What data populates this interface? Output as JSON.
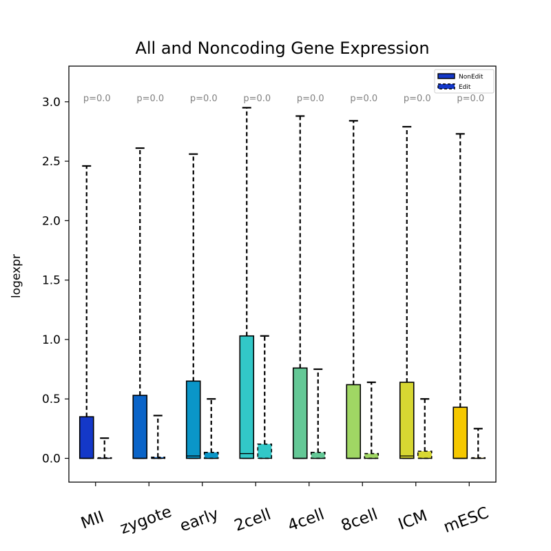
{
  "chart_data": {
    "type": "box",
    "title": "All and Noncoding Gene Expression",
    "xlabel": "",
    "ylabel": "logexpr",
    "ylim": [
      -0.2,
      3.3
    ],
    "yticks": [
      0.0,
      0.5,
      1.0,
      1.5,
      2.0,
      2.5,
      3.0
    ],
    "ytick_labels": [
      "0.0",
      "0.5",
      "1.0",
      "1.5",
      "2.0",
      "2.5",
      "3.0"
    ],
    "grid": false,
    "legend_position": "top-right",
    "categories": [
      "MII",
      "zygote",
      "early",
      "2cell",
      "4cell",
      "8cell",
      "ICM",
      "mESC"
    ],
    "category_colors": [
      "#1438c8",
      "#0a64c8",
      "#0a96c8",
      "#32c8c8",
      "#64c896",
      "#a0d764",
      "#d7d732",
      "#f5c800"
    ],
    "pvalues": [
      "p=0.0",
      "p=0.0",
      "p=0.0",
      "p=0.0",
      "p=0.0",
      "p=0.0",
      "p=0.0",
      "p=0.0"
    ],
    "series": [
      {
        "name": "NonEdit",
        "line_style": "solid",
        "boxes": [
          {
            "q1": 0.0,
            "median": 0.0,
            "q3": 0.35,
            "whisker_low": 0.0,
            "whisker_high": 2.46
          },
          {
            "q1": 0.0,
            "median": 0.0,
            "q3": 0.53,
            "whisker_low": 0.0,
            "whisker_high": 2.61
          },
          {
            "q1": 0.0,
            "median": 0.02,
            "q3": 0.65,
            "whisker_low": 0.0,
            "whisker_high": 2.56
          },
          {
            "q1": 0.0,
            "median": 0.04,
            "q3": 1.03,
            "whisker_low": 0.0,
            "whisker_high": 2.95
          },
          {
            "q1": 0.0,
            "median": 0.0,
            "q3": 0.76,
            "whisker_low": 0.0,
            "whisker_high": 2.88
          },
          {
            "q1": 0.0,
            "median": 0.0,
            "q3": 0.62,
            "whisker_low": 0.0,
            "whisker_high": 2.84
          },
          {
            "q1": 0.0,
            "median": 0.02,
            "q3": 0.64,
            "whisker_low": 0.0,
            "whisker_high": 2.79
          },
          {
            "q1": 0.0,
            "median": 0.0,
            "q3": 0.43,
            "whisker_low": 0.0,
            "whisker_high": 2.73
          }
        ]
      },
      {
        "name": "Edit",
        "line_style": "dashed",
        "boxes": [
          {
            "q1": 0.0,
            "median": 0.0,
            "q3": 0.0,
            "whisker_low": 0.0,
            "whisker_high": 0.17
          },
          {
            "q1": 0.0,
            "median": 0.0,
            "q3": 0.01,
            "whisker_low": 0.0,
            "whisker_high": 0.36
          },
          {
            "q1": 0.0,
            "median": 0.0,
            "q3": 0.05,
            "whisker_low": 0.0,
            "whisker_high": 0.5
          },
          {
            "q1": 0.0,
            "median": 0.0,
            "q3": 0.12,
            "whisker_low": 0.0,
            "whisker_high": 1.03
          },
          {
            "q1": 0.0,
            "median": 0.0,
            "q3": 0.05,
            "whisker_low": 0.0,
            "whisker_high": 0.75
          },
          {
            "q1": 0.0,
            "median": 0.0,
            "q3": 0.04,
            "whisker_low": 0.0,
            "whisker_high": 0.64
          },
          {
            "q1": 0.0,
            "median": 0.0,
            "q3": 0.06,
            "whisker_low": 0.0,
            "whisker_high": 0.5
          },
          {
            "q1": 0.0,
            "median": 0.0,
            "q3": 0.0,
            "whisker_low": 0.0,
            "whisker_high": 0.25
          }
        ]
      }
    ],
    "legend": [
      {
        "label": "NonEdit",
        "color": "#1438c8",
        "line_style": "solid"
      },
      {
        "label": "Edit",
        "color": "#1438c8",
        "line_style": "dashed"
      }
    ]
  }
}
